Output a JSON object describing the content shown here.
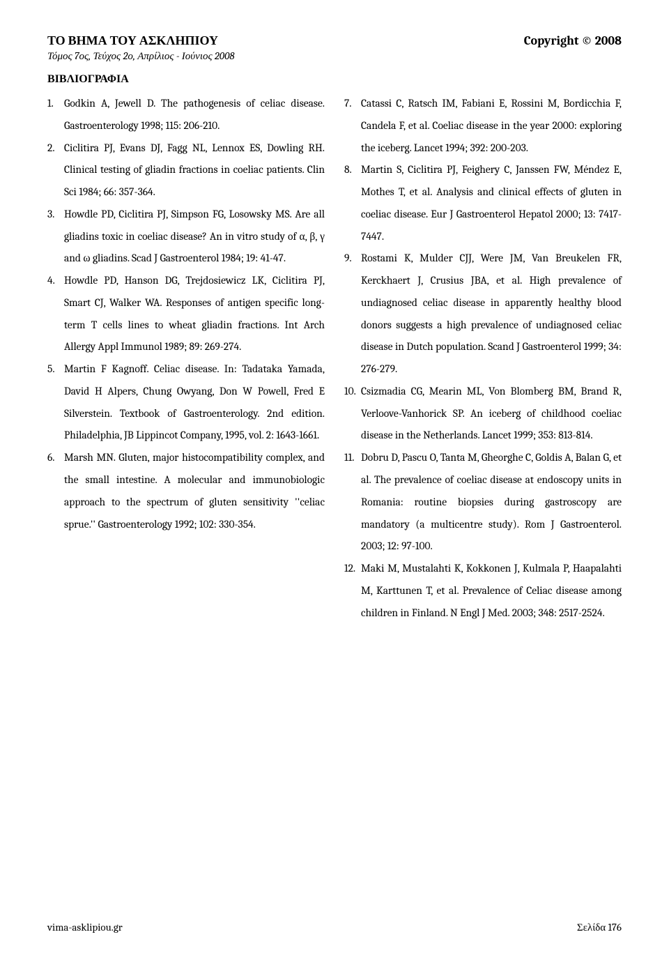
{
  "header": {
    "title_left": "ΤΟ ΒΗΜΑ ΤΟΥ ΑΣΚΛΗΠΙΟΥ",
    "title_right": "Copyright © 2008",
    "subtitle": "Τόμος 7ος, Τεύχος 2ο, Απρίλιος - Ιούνιος 2008"
  },
  "section_title": "ΒΙΒΛΙΟΓΡΑΦΙΑ",
  "references_left": [
    {
      "num": "1.",
      "text": "Godkin A, Jewell D. The pathogenesis of celiac disease. Gastroenterology 1998; 115: 206-210."
    },
    {
      "num": "2.",
      "text": "Ciclitira PJ, Evans DJ, Fagg NL, Lennox ES, Dowling RH. Clinical testing of gliadin fractions in coeliac patients. Clin Sci 1984; 66: 357-364."
    },
    {
      "num": "3.",
      "text": "Howdle PD, Ciclitira PJ, Simpson FG, Losowsky MS. Are all gliadins toxic in coeliac disease? An in vitro study of α, β, γ and ω gliadins. Scad J Gastroenterol 1984; 19: 41-47."
    },
    {
      "num": "4.",
      "text": "Howdle PD, Hanson DG, Trejdosiewicz LK, Ciclitira PJ, Smart CJ, Walker WA. Responses of antigen specific long-term T cells lines to wheat gliadin fractions. Int Arch Allergy Appl Immunol 1989; 89: 269-274."
    },
    {
      "num": "5.",
      "text": "Martin F Kagnoff. Celiac disease. In: Tadataka Yamada, David H Alpers, Chung Owyang, Don W Powell, Fred E Silverstein. Textbook of Gastroenterology. 2nd edition. Philadelphia, JB Lippincot Company, 1995, vol. 2: 1643-1661."
    },
    {
      "num": "6.",
      "text": "Marsh MN. Gluten, major histocompatibility complex, and the small intestine. A molecular and immunobiologic approach to the spectrum of gluten sensitivity ''celiac sprue.'' Gastroenterology 1992; 102: 330-354."
    }
  ],
  "references_right": [
    {
      "num": "7.",
      "text": "Catassi C, Ratsch IM, Fabiani E, Rossini M, Bordicchia F, Candela F, et al. Coeliac disease in the year 2000: exploring the iceberg. Lancet 1994; 392: 200-203."
    },
    {
      "num": "8.",
      "text": "Martin S, Ciclitira PJ, Feighery C, Janssen FW, Méndez E, Mothes T, et al. Analysis and clinical effects of gluten in coeliac disease. Eur J Gastroenterol Hepatol 2000; 13: 7417-7447."
    },
    {
      "num": "9.",
      "text": "Rostami K, Mulder CJJ, Were JM, Van Breukelen FR, Kerckhaert J, Crusius JBA, et al. High prevalence of undiagnosed celiac disease in apparently healthy blood donors suggests a high prevalence of undiagnosed celiac disease in Dutch population. Scand J Gastroenterol 1999; 34: 276-279."
    },
    {
      "num": "10.",
      "text": "Csizmadia CG, Mearin ML, Von Blomberg BM, Brand R, Verloove-Vanhorick SP. An iceberg of childhood coeliac disease in the Netherlands. Lancet 1999; 353: 813-814."
    },
    {
      "num": "11.",
      "text": "Dobru D, Pascu O, Tanta M, Gheorghe C, Goldis A, Balan G, et al. The prevalence of coeliac disease at endoscopy units in Romania: routine biopsies during gastroscopy are mandatory (a multicentre study).\nRom J Gastroenterol. 2003; 12: 97-100."
    },
    {
      "num": "12.",
      "text": "Maki M, Mustalahti K, Kokkonen J, Kulmala P, Haapalahti M, Karttunen T, et al. Prevalence of Celiac disease among children in Finland. N Engl J Med. 2003; 348: 2517-2524."
    }
  ],
  "footer": {
    "left": "vima-asklipiou.gr",
    "right": "Σελίδα 176"
  }
}
